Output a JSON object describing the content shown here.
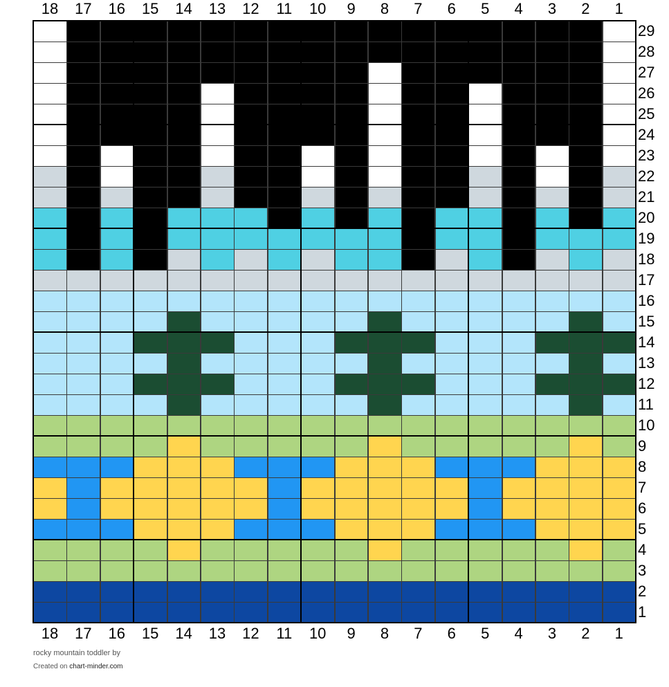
{
  "chart_title": "rocky mountain toddler",
  "chart_by": "by",
  "created_prefix": "Created on",
  "site": "chart-minder.com",
  "columns": [
    18,
    17,
    16,
    15,
    14,
    13,
    12,
    11,
    10,
    9,
    8,
    7,
    6,
    5,
    4,
    3,
    2,
    1
  ],
  "rows": [
    29,
    28,
    27,
    26,
    25,
    24,
    23,
    22,
    21,
    20,
    19,
    18,
    17,
    16,
    15,
    14,
    13,
    12,
    11,
    10,
    9,
    8,
    7,
    6,
    5,
    4,
    3,
    2,
    1
  ],
  "colors": {
    "K": "#000000",
    "W": "#ffffff",
    "G": "#cfd8de",
    "T": "#4fd0e3",
    "L": "#b3e5fb",
    "D": "#1b4d32",
    "S": "#aed581",
    "B": "#2196f3",
    "Y": "#ffd54f",
    "N": "#0d47a1"
  },
  "chart_data": {
    "type": "table",
    "grid": [
      "WKKKKKKKKKKKKKKKKW",
      "WKKKKKKKKKKKKKKKKW",
      "WKKKKKKKKKWKKKKKKW",
      "WKKKKWKKKKWKKWKKKW",
      "WKKKKWKKKKWKKWKKKW",
      "WKKKKWKKKKWKKWKKKW",
      "WKWKKWKKWKWKKWKWKW",
      "GKWKKGKKWKWKKGKWKG",
      "GKGKKGKKGKGKKGKGKG",
      "TKTKTTTKTKTKTTKTKT",
      "TKTKTTTTTTTKTTKTTT",
      "TKTKGTGTGTTKGTKGTG",
      "GGGGGGGGGGGGGGGGGG",
      "LLLLLLLLLLLLLLLLLL",
      "LLLLDLLLLLDLLLLLDL",
      "LLLDDDLLLDDDLLLDDD",
      "LLLLDLLLLLDLLLLLDL",
      "LLLDDDLLLDDDLLLDDD",
      "LLLLDLLLLLDLLLLLDL",
      "SSSSSSSSSSSSSSSSSS",
      "SSSSYSSSSSYSSSSSYS",
      "BBBYYYBBBYYYBBBYYY",
      "YBYYYYYBYYYYYBYYYY",
      "YBYYYYYBYYYYYBYYYY",
      "BBBYYYBBBYYYBBBYYY",
      "SSSSYSSSSSYSSSSSYS",
      "SSSSSSSSSSSSSSSSSS",
      "NNNNNNNNNNNNNNNNNN",
      "NNNNNNNNNNNNNNNNNN"
    ]
  }
}
